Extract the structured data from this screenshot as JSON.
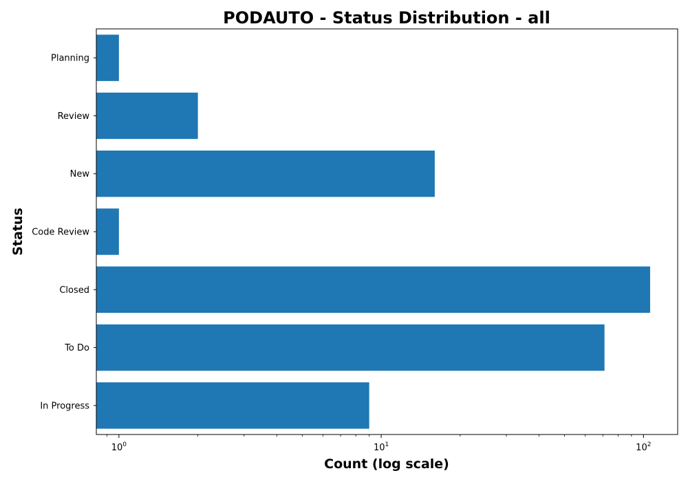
{
  "chart_data": {
    "type": "bar",
    "orientation": "horizontal",
    "title": "PODAUTO - Status Distribution - all",
    "xlabel": "Count (log scale)",
    "ylabel": "Status",
    "x_scale": "log",
    "xlim": [
      0.82,
      135
    ],
    "x_ticks": [
      {
        "value": 1,
        "base": "10",
        "exp": "0"
      },
      {
        "value": 10,
        "base": "10",
        "exp": "1"
      },
      {
        "value": 100,
        "base": "10",
        "exp": "2"
      }
    ],
    "categories": [
      "Planning",
      "Review",
      "New",
      "Code Review",
      "Closed",
      "To Do",
      "In Progress"
    ],
    "values": [
      1,
      2,
      16,
      1,
      106,
      71,
      9
    ],
    "bar_color": "#1f77b4",
    "grid": false,
    "legend": "none"
  }
}
